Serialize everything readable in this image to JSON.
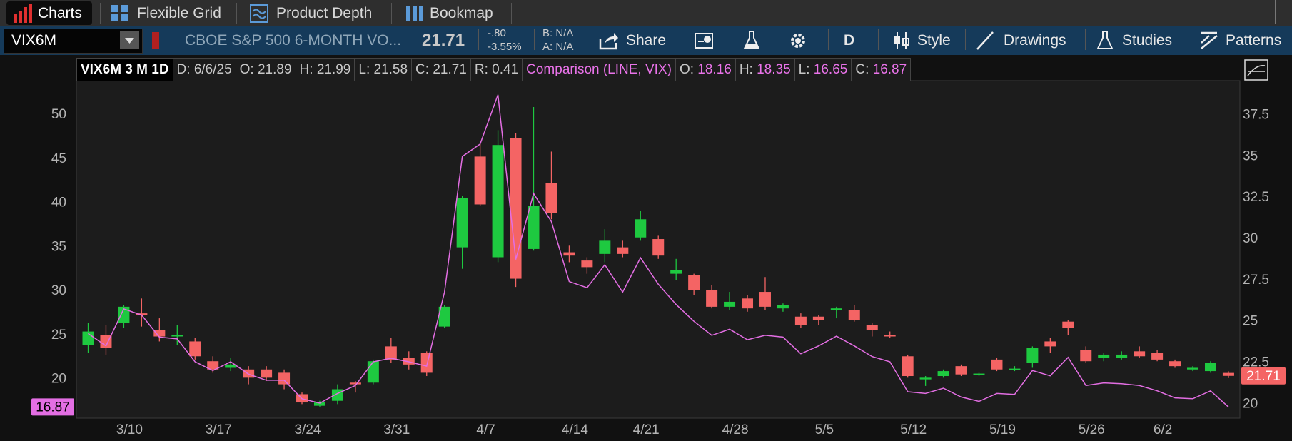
{
  "tabs": [
    "Charts",
    "Flexible Grid",
    "Product Depth",
    "Bookmap"
  ],
  "toolbar": {
    "symbol": "VIX6M",
    "description": "CBOE S&P 500 6-MONTH VO...",
    "last": "21.71",
    "change": "-.80",
    "change_pct": "-3.55%",
    "bid": "B: N/A",
    "ask": "A: N/A",
    "buttons": [
      "Share",
      "D",
      "Style",
      "Drawings",
      "Studies",
      "Patterns"
    ]
  },
  "info": {
    "title": "VIX6M 3 M 1D",
    "items": [
      "D: 6/6/25",
      "O: 21.89",
      "H: 21.99",
      "L: 21.58",
      "C: 21.71",
      "R: 0.41"
    ],
    "comparison": "Comparison (LINE, VIX)",
    "comparison_items": [
      {
        "label": "O:",
        "value": "18.16"
      },
      {
        "label": "H:",
        "value": "18.35"
      },
      {
        "label": "L:",
        "value": "16.65"
      },
      {
        "label": "C:",
        "value": "16.87"
      }
    ]
  },
  "chart_data": {
    "type": "candlestick",
    "categories": [
      null,
      null,
      "3/10",
      null,
      null,
      null,
      null,
      "3/17",
      null,
      null,
      null,
      null,
      "3/24",
      null,
      null,
      null,
      null,
      "3/31",
      null,
      null,
      null,
      null,
      "4/7",
      null,
      null,
      null,
      null,
      "4/14",
      null,
      null,
      null,
      "4/21",
      null,
      null,
      null,
      null,
      "4/28",
      null,
      null,
      null,
      null,
      "5/5",
      null,
      null,
      null,
      null,
      "5/12",
      null,
      null,
      null,
      null,
      "5/19",
      null,
      null,
      null,
      null,
      "5/26",
      null,
      null,
      null,
      "6/2",
      null,
      null,
      null,
      null
    ],
    "series": [
      {
        "name": "VIX6M",
        "type": "candlestick",
        "axis": "y2",
        "up_color": "#1ec940",
        "down_color": "#f46464",
        "open": [
          23.6,
          24.2,
          24.9,
          25.5,
          24.5,
          24.1,
          23.8,
          22.6,
          22.2,
          22.1,
          22.1,
          21.9,
          20.6,
          19.9,
          20.2,
          21.3,
          21.3,
          23.5,
          22.8,
          23.1,
          24.7,
          29.5,
          35.0,
          28.9,
          36.1,
          29.4,
          33.4,
          29.2,
          28.7,
          29.1,
          29.5,
          30.1,
          30.0,
          27.9,
          27.8,
          26.9,
          25.9,
          26.4,
          26.8,
          25.8,
          25.3,
          25.3,
          25.7,
          25.7,
          24.8,
          24.2,
          22.9,
          21.5,
          21.7,
          22.3,
          21.75,
          22.7,
          22.1,
          22.5,
          23.8,
          25.0,
          23.3,
          22.8,
          22.8,
          23.2,
          23.1,
          22.6,
          22.1,
          22.0,
          21.89
        ],
        "high": [
          24.9,
          24.8,
          26.0,
          26.4,
          25.2,
          24.8,
          24.0,
          22.9,
          22.8,
          22.3,
          22.3,
          22.1,
          20.7,
          20.2,
          21.2,
          21.4,
          22.7,
          24.0,
          23.2,
          23.2,
          26.0,
          32.6,
          35.8,
          36.6,
          36.4,
          38.0,
          35.3,
          29.6,
          28.9,
          30.6,
          29.9,
          31.7,
          30.2,
          28.8,
          27.9,
          27.2,
          26.8,
          26.6,
          27.7,
          26.1,
          25.5,
          25.4,
          25.9,
          26.0,
          24.9,
          24.4,
          23.0,
          21.7,
          22.1,
          22.4,
          21.9,
          22.8,
          22.3,
          23.5,
          24.0,
          25.1,
          23.5,
          23.1,
          23.2,
          23.5,
          23.3,
          22.7,
          22.3,
          22.6,
          21.99
        ],
        "low": [
          23.1,
          23.0,
          24.6,
          24.7,
          23.8,
          23.6,
          22.7,
          21.9,
          22.0,
          21.2,
          21.4,
          20.9,
          20.0,
          19.85,
          20.0,
          20.7,
          21.2,
          22.5,
          22.1,
          21.7,
          24.6,
          28.2,
          32.0,
          28.6,
          27.1,
          29.3,
          31.2,
          28.6,
          27.9,
          28.6,
          28.9,
          29.9,
          28.8,
          27.5,
          26.6,
          25.8,
          25.7,
          25.6,
          25.7,
          25.6,
          24.6,
          24.8,
          25.2,
          25.0,
          24.1,
          24.0,
          21.6,
          21.1,
          21.6,
          21.7,
          21.7,
          22.0,
          22.0,
          22.2,
          23.1,
          24.2,
          22.5,
          22.6,
          22.7,
          22.8,
          22.6,
          22.2,
          22.0,
          21.9,
          21.58
        ],
        "close": [
          24.4,
          23.4,
          25.9,
          25.4,
          24.1,
          24.2,
          22.9,
          22.1,
          22.4,
          21.6,
          21.6,
          21.2,
          20.1,
          20.1,
          20.9,
          21.2,
          22.6,
          22.7,
          22.4,
          21.9,
          25.9,
          32.5,
          32.1,
          35.7,
          27.6,
          32.0,
          31.6,
          29.0,
          28.3,
          29.9,
          29.1,
          31.2,
          29.0,
          28.1,
          26.9,
          25.9,
          26.2,
          25.8,
          25.9,
          26.0,
          24.8,
          25.1,
          25.8,
          25.1,
          24.5,
          24.1,
          21.7,
          21.6,
          22.0,
          21.8,
          21.85,
          22.1,
          22.15,
          23.4,
          23.5,
          24.6,
          22.6,
          23.0,
          23.0,
          22.9,
          22.7,
          22.3,
          22.2,
          22.5,
          21.71
        ]
      },
      {
        "name": "VIX",
        "type": "line",
        "axis": "y",
        "color": "#e36ee3",
        "values": [
          25.2,
          23.8,
          28.0,
          27.3,
          24.8,
          24.6,
          22.0,
          21.0,
          22.0,
          20.6,
          19.9,
          19.9,
          17.8,
          17.3,
          18.4,
          19.3,
          22.0,
          22.4,
          22.0,
          21.5,
          29.9,
          45.3,
          46.7,
          52.3,
          33.6,
          41.1,
          37.9,
          31.1,
          30.4,
          33.0,
          29.9,
          33.8,
          30.8,
          28.5,
          26.6,
          25.0,
          25.7,
          24.5,
          25.0,
          24.8,
          22.9,
          23.8,
          24.9,
          23.8,
          22.6,
          22.0,
          18.6,
          18.4,
          19.0,
          18.0,
          17.5,
          18.4,
          18.3,
          21.0,
          20.4,
          22.5,
          19.3,
          19.6,
          19.5,
          19.3,
          18.7,
          17.9,
          17.8,
          18.7,
          16.87
        ]
      }
    ],
    "ylim": [
      15.6,
      53.9
    ],
    "yticks": [
      20,
      25,
      30,
      35,
      40,
      45,
      50
    ],
    "y2lim": [
      19.15,
      39.6
    ],
    "y2ticks": [
      20,
      22.5,
      25,
      27.5,
      30,
      32.5,
      35,
      37.5
    ],
    "grid": false
  }
}
